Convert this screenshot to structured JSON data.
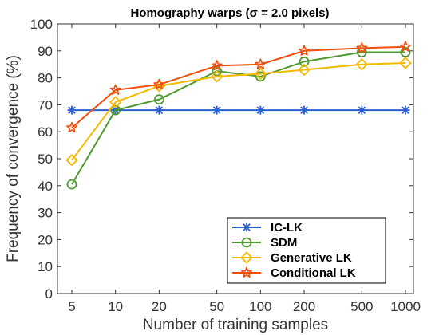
{
  "chart_data": {
    "type": "line",
    "title": "Homography warps (σ = 2.0 pixels)",
    "xlabel": "Number of training samples",
    "ylabel": "Frequency of convergence (%)",
    "x_scale": "log",
    "x": [
      5,
      10,
      20,
      50,
      100,
      200,
      500,
      1000
    ],
    "x_tick_labels": [
      "5",
      "10",
      "20",
      "50",
      "100",
      "200",
      "500",
      "1000"
    ],
    "ylim": [
      0,
      100
    ],
    "y_ticks": [
      0,
      10,
      20,
      30,
      40,
      50,
      60,
      70,
      80,
      90,
      100
    ],
    "y_tick_labels": [
      "0",
      "10",
      "20",
      "30",
      "40",
      "50",
      "60",
      "70",
      "80",
      "90",
      "100"
    ],
    "grid": false,
    "legend_position": "bottom-right",
    "series": [
      {
        "name": "IC-LK",
        "color": "#2c5fd1",
        "marker": "asterisk",
        "values": [
          68,
          68,
          68,
          68,
          68,
          68,
          68,
          68
        ]
      },
      {
        "name": "SDM",
        "color": "#4e9a2e",
        "marker": "circle",
        "values": [
          40.5,
          68,
          72,
          82.5,
          80.5,
          86,
          89.5,
          89.5
        ]
      },
      {
        "name": "Generative LK",
        "color": "#f5b800",
        "marker": "diamond",
        "values": [
          49.5,
          71,
          77,
          80.5,
          81.5,
          83,
          85,
          85.5
        ]
      },
      {
        "name": "Conditional LK",
        "color": "#f04e0c",
        "marker": "star",
        "values": [
          61.5,
          75.5,
          77.5,
          84.5,
          85,
          90,
          91,
          91.5
        ]
      }
    ]
  }
}
